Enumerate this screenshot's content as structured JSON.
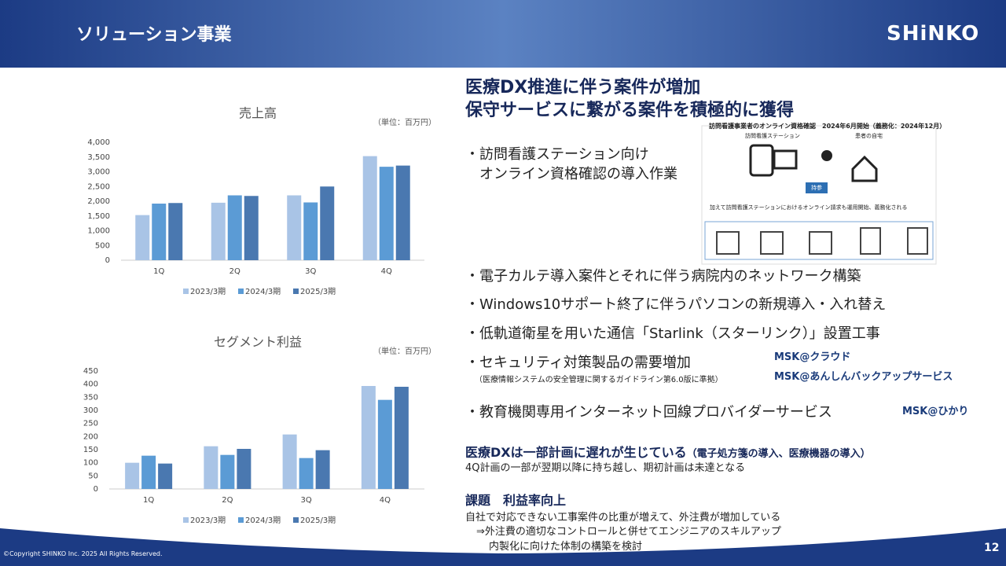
{
  "header": {
    "title": "ソリューション事業",
    "logo": "SHiNKO"
  },
  "chart_data": [
    {
      "type": "bar",
      "title": "売上高",
      "annotation": "（単位：百万円）",
      "categories": [
        "1Q",
        "2Q",
        "3Q",
        "4Q"
      ],
      "series": [
        {
          "name": "2023/3期",
          "color": "#a9c4e6",
          "values": [
            1530,
            1950,
            2200,
            3530
          ]
        },
        {
          "name": "2024/3期",
          "color": "#5b9bd5",
          "values": [
            1920,
            2200,
            1960,
            3170
          ]
        },
        {
          "name": "2025/3期",
          "color": "#4a78b0",
          "values": [
            1940,
            2180,
            2500,
            3210
          ]
        }
      ],
      "ylim": [
        0,
        4000
      ],
      "yticks": [
        0,
        500,
        {
          "value": 1000,
          "label": "1,000"
        },
        {
          "value": 1500,
          "label": "1,500"
        },
        {
          "value": 2000,
          "label": "2,000"
        },
        {
          "value": 2500,
          "label": "2,500"
        },
        {
          "value": 3000,
          "label": "3,000"
        },
        {
          "value": 3500,
          "label": "3,500"
        },
        {
          "value": 4000,
          "label": "4,000"
        }
      ],
      "legend": "bottom"
    },
    {
      "type": "bar",
      "title": "セグメント利益",
      "annotation": "（単位：百万円）",
      "categories": [
        "1Q",
        "2Q",
        "3Q",
        "4Q"
      ],
      "series": [
        {
          "name": "2023/3期",
          "color": "#a9c4e6",
          "values": [
            100,
            163,
            208,
            393
          ]
        },
        {
          "name": "2024/3期",
          "color": "#5b9bd5",
          "values": [
            127,
            130,
            118,
            340
          ]
        },
        {
          "name": "2025/3期",
          "color": "#4a78b0",
          "values": [
            97,
            153,
            148,
            390
          ]
        }
      ],
      "ylim": [
        0,
        450
      ],
      "yticks": [
        0,
        50,
        100,
        150,
        200,
        250,
        300,
        350,
        400,
        450
      ],
      "legend": "bottom"
    }
  ],
  "headline": [
    "医療DX推進に伴う案件が増加",
    "保守サービスに繋がる案件を積極的に獲得"
  ],
  "bullets": [
    "・訪問看護ステーション向け",
    "オンライン資格確認の導入作業",
    "・電子カルテ導入案件とそれに伴う病院内のネットワーク構築",
    "・Windows10サポート終了に伴うパソコンの新規導入・入れ替え",
    "・低軌道衛星を用いた通信「Starlink（スターリンク）」設置工事",
    "・セキュリティ対策製品の需要増加",
    "（医療情報システムの安全管理に関するガイドライン第6.0版に準拠）",
    "・教育機関専用インターネット回線プロバイダーサービス"
  ],
  "diagram": {
    "title": "訪問看護事業者のオンライン資格確認　2024年6月開始（義務化：2024年12月）",
    "labels": [
      "訪問看護ステーション",
      "患者の自宅",
      "持参",
      "加えて訪問看護ステーションにおけるオンライン請求も運用開始、義務化される"
    ]
  },
  "logos": [
    "MSK@クラウド",
    "MSK@あんしんバックアップサービス",
    "MSK@ひかり"
  ],
  "section1": {
    "title": "医療DXは一部計画に遅れが生じている",
    "note": "（電子処方箋の導入、医療機器の導入）",
    "body": "4Q計画の一部が翌期以降に持ち越し、期初計画は未達となる"
  },
  "section2": {
    "title": "課題　利益率向上",
    "body": [
      "自社で対応できない工事案件の比重が増えて、外注費が増加している",
      "⇒外注費の適切なコントロールと併せてエンジニアのスキルアップ",
      "内製化に向けた体制の構築を検討"
    ]
  },
  "footer": {
    "copyright": "©Copyright SHINKO Inc. 2025 All Rights Reserved.",
    "page": "12"
  }
}
